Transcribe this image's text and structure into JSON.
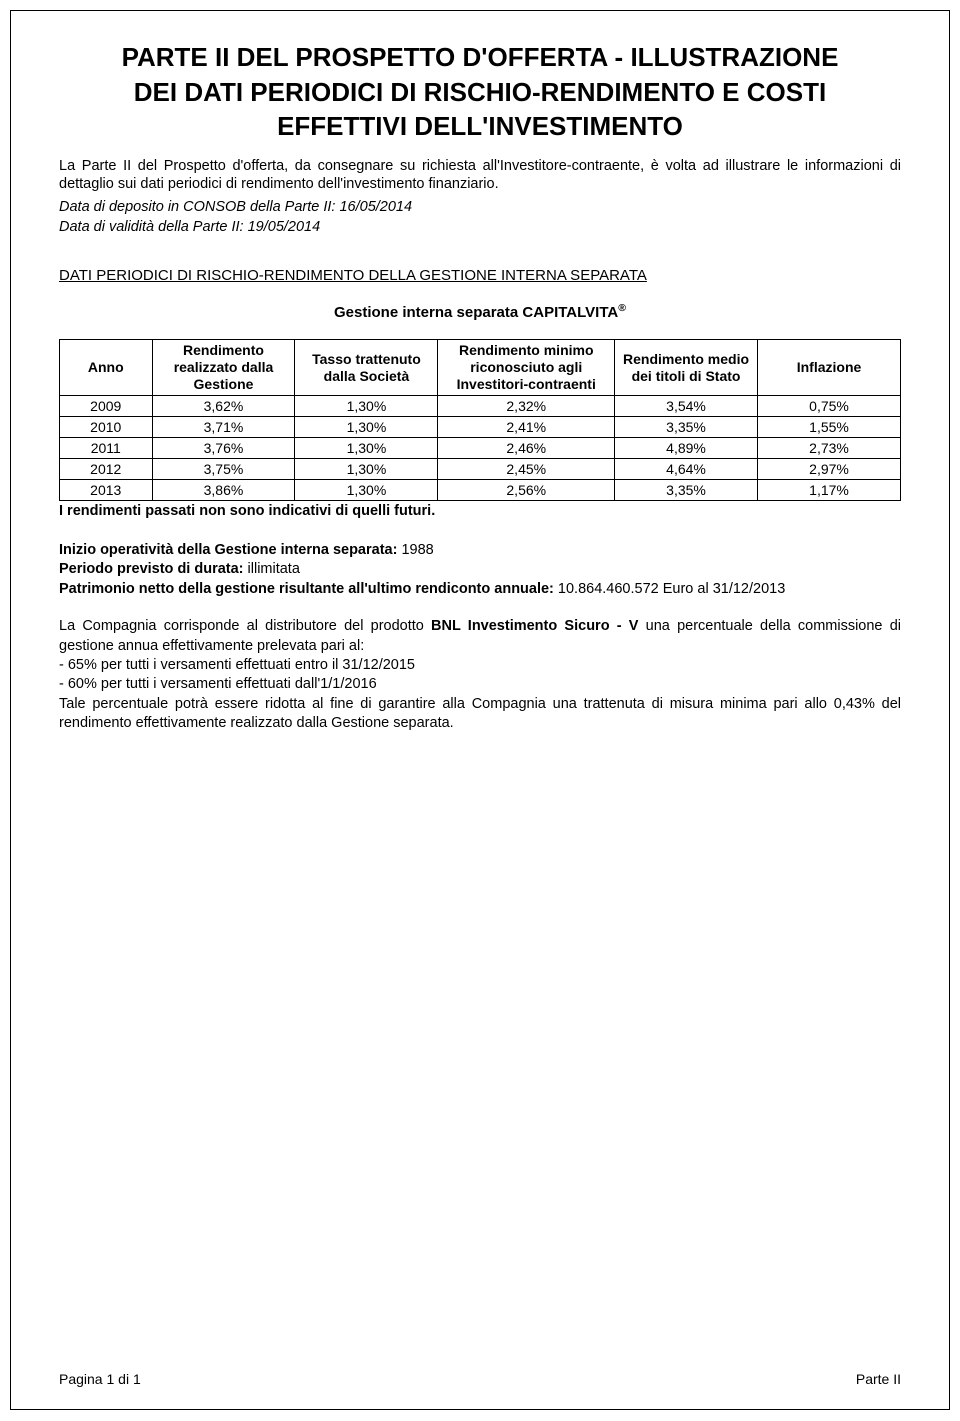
{
  "title_line1": "PARTE II DEL PROSPETTO D'OFFERTA -  ILLUSTRAZIONE",
  "title_line2": "DEI DATI PERIODICI DI RISCHIO-RENDIMENTO E COSTI",
  "title_line3": "EFFETTIVI DELL'INVESTIMENTO",
  "intro": "La Parte II del Prospetto d'offerta, da consegnare su richiesta all'Investitore-contraente, è volta ad illustrare le informazioni di dettaglio sui dati periodici di rendimento dell'investimento finanziario.",
  "meta1": "Data di deposito in CONSOB della Parte II: 16/05/2014",
  "meta2": "Data di validità della Parte II: 19/05/2014",
  "section_heading": "DATI PERIODICI DI RISCHIO-RENDIMENTO DELLA GESTIONE INTERNA SEPARATA",
  "gestione_title_prefix": "Gestione interna separata CAPITALVITA",
  "table": {
    "headers": {
      "anno": "Anno",
      "rendimento": "Rendimento realizzato dalla Gestione",
      "tasso": "Tasso trattenuto dalla Società",
      "minimo": "Rendimento minimo riconosciuto agli Investitori-contraenti",
      "medio": "Rendimento medio dei titoli di Stato",
      "inflazione": "Inflazione"
    },
    "rows": [
      {
        "anno": "2009",
        "rend": "3,62%",
        "tasso": "1,30%",
        "min": "2,32%",
        "medio": "3,54%",
        "infl": "0,75%"
      },
      {
        "anno": "2010",
        "rend": "3,71%",
        "tasso": "1,30%",
        "min": "2,41%",
        "medio": "3,35%",
        "infl": "1,55%"
      },
      {
        "anno": "2011",
        "rend": "3,76%",
        "tasso": "1,30%",
        "min": "2,46%",
        "medio": "4,89%",
        "infl": "2,73%"
      },
      {
        "anno": "2012",
        "rend": "3,75%",
        "tasso": "1,30%",
        "min": "2,45%",
        "medio": "4,64%",
        "infl": "2,97%"
      },
      {
        "anno": "2013",
        "rend": "3,86%",
        "tasso": "1,30%",
        "min": "2,56%",
        "medio": "3,35%",
        "infl": "1,17%"
      }
    ]
  },
  "table_footnote": "I rendimenti passati non sono indicativi di quelli futuri.",
  "block": {
    "l1_label": "Inizio operatività della Gestione interna separata: ",
    "l1_value": "1988",
    "l2_label": "Periodo previsto di durata: ",
    "l2_value": "illimitata",
    "l3_label": "Patrimonio netto della gestione risultante all'ultimo rendiconto annuale: ",
    "l3_value": "10.864.460.572 Euro al 31/12/2013"
  },
  "para1_a": "La Compagnia  corrisponde al distributore del prodotto ",
  "para1_bold": "BNL Investimento Sicuro - V",
  "para1_b": " una percentuale della commissione di gestione annua effettivamente prelevata pari al:",
  "bullet1": "- 65% per tutti i versamenti effettuati entro il 31/12/2015",
  "bullet2": "- 60% per tutti i versamenti effettuati  dall'1/1/2016",
  "para2": "Tale percentuale potrà essere ridotta al fine di garantire alla Compagnia una trattenuta di misura minima pari allo 0,43% del rendimento effettivamente realizzato dalla Gestione separata.",
  "footer_left": "Pagina 1 di 1",
  "footer_right": "Parte II"
}
